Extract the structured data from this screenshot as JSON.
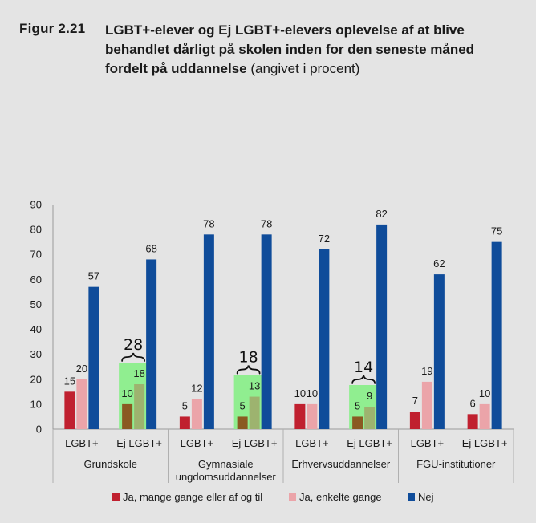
{
  "figure": {
    "label": "Figur 2.21",
    "title_bold": "LGBT+-elever og Ej LGBT+-elevers oplevelse af at blive behandlet dårligt på skolen inden for den seneste måned fordelt på uddannelse",
    "title_normal": " (angivet i procent)"
  },
  "chart_data": {
    "type": "bar",
    "ylim": [
      0,
      90
    ],
    "yticks": [
      0,
      10,
      20,
      30,
      40,
      50,
      60,
      70,
      80,
      90
    ],
    "grid": false,
    "legend_position": "bottom",
    "groups": [
      {
        "label_lines": [
          "Grundskole"
        ],
        "categories": [
          "LGBT+",
          "Ej LGBT+"
        ]
      },
      {
        "label_lines": [
          "Gymnasiale",
          "ungdomsuddannelser"
        ],
        "categories": [
          "LGBT+",
          "Ej LGBT+"
        ]
      },
      {
        "label_lines": [
          "Erhvervsuddannelser"
        ],
        "categories": [
          "LGBT+",
          "Ej LGBT+"
        ]
      },
      {
        "label_lines": [
          "FGU-institutioner"
        ],
        "categories": [
          "LGBT+",
          "Ej LGBT+"
        ]
      }
    ],
    "series": [
      {
        "name": "Ja, mange gange eller af og til",
        "color": "#c0202f",
        "values": [
          15,
          10,
          5,
          5,
          10,
          5,
          7,
          6
        ]
      },
      {
        "name": "Ja, enkelte gange",
        "color": "#eba4a9",
        "values": [
          20,
          18,
          12,
          13,
          10,
          9,
          19,
          10
        ]
      },
      {
        "name": "Nej",
        "color": "#0f4c9a",
        "values": [
          57,
          68,
          78,
          78,
          72,
          82,
          62,
          75
        ]
      }
    ],
    "highlight": {
      "color": "#90ee90",
      "bar_colors": [
        "#8a5a22",
        "#9db36f"
      ],
      "bar_indices": [
        1,
        3,
        5
      ],
      "annotations": [
        "28",
        "18",
        "14"
      ]
    }
  }
}
